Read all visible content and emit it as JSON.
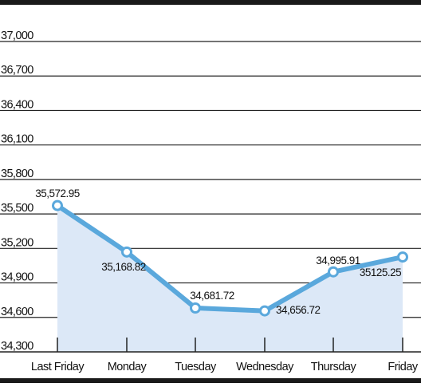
{
  "chart_data": {
    "type": "line",
    "title": "",
    "xlabel": "",
    "ylabel": "",
    "categories": [
      "Last Friday",
      "Monday",
      "Tuesday",
      "Wednesday",
      "Thursday",
      "Friday"
    ],
    "series": [
      {
        "values": [
          35572.95,
          35168.82,
          34681.72,
          34656.72,
          34995.91,
          35125.25
        ],
        "labels": [
          "35,572.95",
          "35,168.82",
          "34,681.72",
          "34,656.72",
          "34,995.91",
          "35125.25"
        ]
      }
    ],
    "yticks": [
      34300,
      34600,
      34900,
      35200,
      35500,
      35800,
      36100,
      36400,
      36700,
      37000
    ],
    "ytick_labels": [
      "34,300",
      "34,600",
      "34,900",
      "35,200",
      "35,500",
      "35,800",
      "36,100",
      "36,400",
      "36,700",
      "37,000"
    ],
    "ylim": [
      34300,
      37000
    ],
    "grid": true,
    "legend": "none",
    "colors": {
      "line": "#5aa8dc",
      "area": "#dce8f7",
      "marker_fill": "#ffffff",
      "grid": "#222222",
      "frame": "#1a1a1a"
    }
  }
}
